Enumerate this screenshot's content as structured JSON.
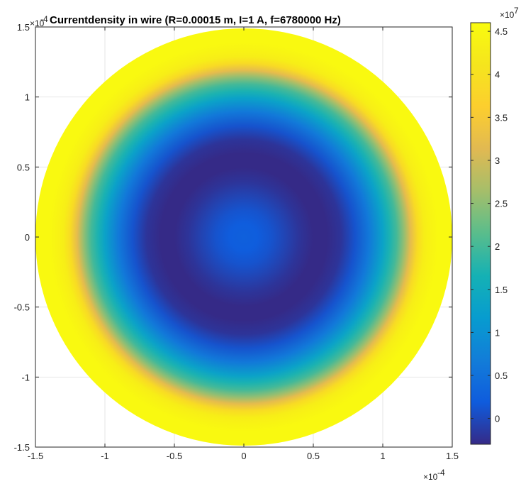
{
  "chart_data": {
    "type": "heatmap",
    "title": "Currentdensity in wire (R=0.00015 m, I=1 A, f=6780000 Hz)",
    "x_multiplier": "×10",
    "x_exponent": "-4",
    "y_multiplier": "×10",
    "y_exponent": "-4",
    "xlim": [
      -1.5,
      1.5
    ],
    "ylim": [
      -1.5,
      1.5
    ],
    "x_ticks": [
      -1.5,
      -1,
      -0.5,
      0,
      0.5,
      1,
      1.5
    ],
    "x_tick_labels": [
      "-1.5",
      "-1",
      "-0.5",
      "0",
      "0.5",
      "1",
      "1.5"
    ],
    "y_ticks": [
      -1.5,
      -1,
      -0.5,
      0,
      0.5,
      1,
      1.5
    ],
    "y_tick_labels": [
      "-1.5",
      "-1",
      "-0.5",
      "0",
      "0.5",
      "1",
      "1.5"
    ],
    "grid": true,
    "shape": "disk",
    "disk_radius": 1.5,
    "radial_profile": {
      "r": [
        0,
        0.1,
        0.2,
        0.3,
        0.4,
        0.5,
        0.6,
        0.7,
        0.8,
        0.9,
        1.0,
        1.05,
        1.1,
        1.15,
        1.2,
        1.25,
        1.3,
        1.35,
        1.4,
        1.45,
        1.5
      ],
      "value": [
        0.25,
        0.2,
        0.1,
        -0.05,
        -0.2,
        -0.3,
        -0.3,
        -0.2,
        0.1,
        0.6,
        1.3,
        1.7,
        2.0,
        2.5,
        3.2,
        3.9,
        4.3,
        4.45,
        4.55,
        4.55,
        4.55
      ]
    },
    "colorbar": {
      "multiplier": "×10",
      "exponent": "7",
      "ticks": [
        0,
        0.5,
        1,
        1.5,
        2,
        2.5,
        3,
        3.5,
        4,
        4.5
      ],
      "tick_labels": [
        "0",
        "0.5",
        "1",
        "1.5",
        "2",
        "2.5",
        "3",
        "3.5",
        "4",
        "4.5"
      ],
      "clim": [
        -0.3,
        4.6
      ],
      "colormap": "parula"
    }
  }
}
